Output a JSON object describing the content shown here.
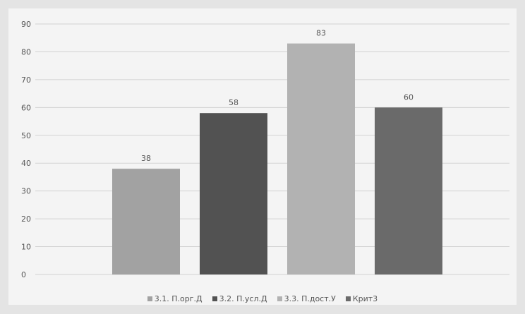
{
  "chart_data": {
    "type": "bar",
    "categories": [],
    "series": [
      {
        "name": "3.1. П.орг.Д",
        "value": 38,
        "color": "#a2a2a2"
      },
      {
        "name": "3.2. П.усл.Д",
        "value": 58,
        "color": "#525252"
      },
      {
        "name": "3.3. П.дост.У",
        "value": 83,
        "color": "#b2b2b2"
      },
      {
        "name": "Крит3",
        "value": 60,
        "color": "#6a6a6a"
      }
    ],
    "ylim": [
      0,
      90
    ],
    "y_ticks": [
      0,
      10,
      20,
      30,
      40,
      50,
      60,
      70,
      80,
      90
    ],
    "grid": true,
    "legend_position": "bottom",
    "title": "",
    "xlabel": "",
    "ylabel": ""
  },
  "colors": {
    "background": "#e4e4e4",
    "plot_background": "#f4f4f4",
    "gridline": "#d2d2d2",
    "text": "#555555"
  }
}
